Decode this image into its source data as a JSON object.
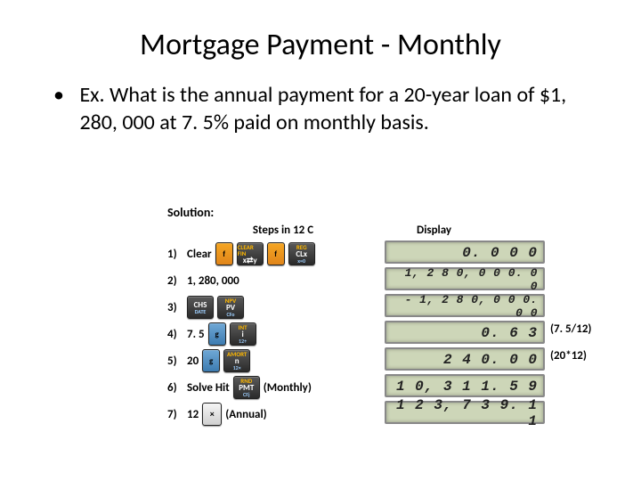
{
  "title": "Mortgage Payment - Monthly",
  "bullet": {
    "dot": "•",
    "text": "Ex. What is the annual payment for a 20-year loan of $1, 280, 000 at 7. 5% paid on monthly basis."
  },
  "solution_label": "Solution:",
  "columns": {
    "steps": "Steps in 12 C",
    "display": "Display"
  },
  "rows": [
    {
      "n": "1)",
      "label": "Clear",
      "keys": [
        {
          "cls": "key-orange",
          "mid": "f"
        },
        {
          "cls": "key-dark",
          "top": "CLEAR FIN",
          "mid": "x⇄y",
          "bot": ""
        },
        {
          "cls": "key-orange",
          "mid": "f"
        },
        {
          "cls": "key-dark",
          "top": "REG",
          "mid": "CLx",
          "bot": "x=0"
        }
      ]
    },
    {
      "n": "2)",
      "label": "1, 280, 000",
      "keys": []
    },
    {
      "n": "3)",
      "label": "",
      "keys": [
        {
          "cls": "key-dark",
          "top": "",
          "mid": "CHS",
          "bot": "DATE"
        },
        {
          "cls": "key-dark",
          "top": "NPV",
          "mid": "PV",
          "bot": "CFo"
        }
      ]
    },
    {
      "n": "4)",
      "label": "7. 5",
      "keys": [
        {
          "cls": "key-blue",
          "mid": "g"
        },
        {
          "cls": "key-dark",
          "top": "INT",
          "mid": "i",
          "bot": "12÷"
        }
      ]
    },
    {
      "n": "5)",
      "label": "20",
      "keys": [
        {
          "cls": "key-blue",
          "mid": "g"
        },
        {
          "cls": "key-dark",
          "top": "AMORT",
          "mid": "n",
          "bot": "12×"
        }
      ]
    },
    {
      "n": "6)",
      "label": "Solve Hit",
      "keys": [
        {
          "cls": "key-dark",
          "top": "RND",
          "mid": "PMT",
          "bot": "CFj"
        }
      ],
      "after": "(Monthly)"
    },
    {
      "n": "7)",
      "label": "12",
      "keys": [
        {
          "cls": "key-white",
          "mid": "×"
        }
      ],
      "after": "(Annual)"
    }
  ],
  "displays": [
    "0. 0 0 0",
    "1, 2 8 0, 0 0 0. 0 0",
    "- 1, 2 8 0, 0 0 0. 0 0",
    "0. 6 3",
    "2 4 0. 0 0",
    "1 0, 3 1 1. 5 9",
    "1 2 3, 7 3 9. 1 1"
  ],
  "annotations": {
    "a4": "(7. 5/12)",
    "a5": "(20*12)"
  }
}
